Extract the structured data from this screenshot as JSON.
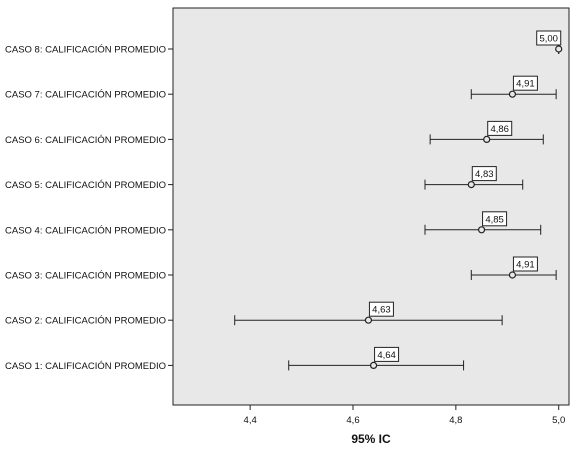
{
  "chart_data": {
    "type": "errorbar",
    "orientation": "horizontal",
    "xlabel": "95% IC",
    "xlim": [
      4.25,
      5.02
    ],
    "xticks": [
      4.4,
      4.6,
      4.8,
      5.0
    ],
    "xtick_labels": [
      "4,4",
      "4,6",
      "4,8",
      "5,0"
    ],
    "grid": false,
    "background": "#e8e8e8",
    "categories": [
      "CASO 8: CALIFICACIÓN PROMEDIO",
      "CASO 7: CALIFICACIÓN PROMEDIO",
      "CASO 6: CALIFICACIÓN PROMEDIO",
      "CASO 5: CALIFICACIÓN PROMEDIO",
      "CASO 4: CALIFICACIÓN PROMEDIO",
      "CASO 3: CALIFICACIÓN PROMEDIO",
      "CASO 2: CALIFICACIÓN PROMEDIO",
      "CASO 1: CALIFICACIÓN PROMEDIO"
    ],
    "means": [
      5.0,
      4.91,
      4.86,
      4.83,
      4.85,
      4.91,
      4.63,
      4.64
    ],
    "mean_labels": [
      "5,00",
      "4,91",
      "4,86",
      "4,83",
      "4,85",
      "4,91",
      "4,63",
      "4,64"
    ],
    "lower": [
      5.0,
      4.83,
      4.75,
      4.74,
      4.74,
      4.83,
      4.37,
      4.475
    ],
    "upper": [
      5.0,
      4.995,
      4.97,
      4.93,
      4.965,
      4.995,
      4.89,
      4.815
    ]
  }
}
